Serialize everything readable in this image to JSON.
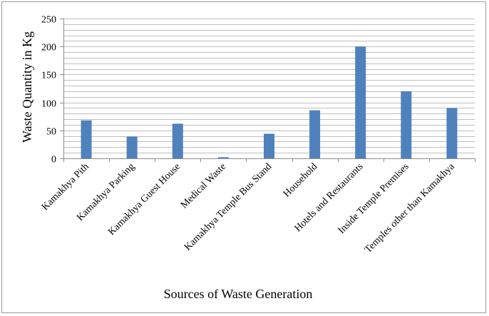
{
  "chart_data": {
    "type": "bar",
    "categories": [
      "Kamakhya Pith",
      "Kamakhya Parking",
      "Kamakhya Guest House",
      "Medical Waste",
      "Kamakhya Temple Bus Stand",
      "Household",
      "Hotels and Restaurants",
      "Inside Temple Premises",
      "Temples other than Kamakhya"
    ],
    "series": [
      {
        "values": [
          68,
          39,
          62,
          2,
          44,
          86,
          200,
          120,
          90
        ]
      }
    ],
    "title": "",
    "xlabel": "Sources of Waste Generation",
    "ylabel": "Waste Quantity in Kg",
    "ylim": [
      0,
      250
    ],
    "yticks": [
      0,
      50,
      100,
      150,
      200,
      250
    ],
    "grid": true,
    "legend": "none",
    "bar_color": "#4f81bd",
    "grid_color": "#bfbfbf"
  }
}
